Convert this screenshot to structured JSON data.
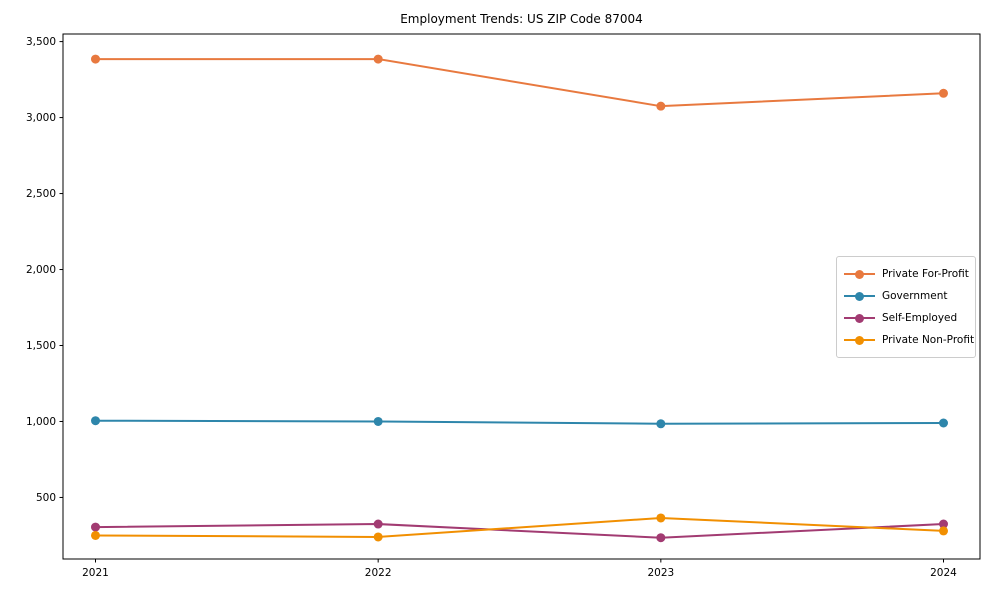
{
  "chart_data": {
    "type": "line",
    "title": "Employment Trends: US ZIP Code 87004",
    "xlabel": "",
    "ylabel": "",
    "x": [
      2021,
      2022,
      2023,
      2024
    ],
    "xtick_labels": [
      "2021",
      "2022",
      "2023",
      "2024"
    ],
    "yticks": [
      500,
      1000,
      1500,
      2000,
      2500,
      3000,
      3500
    ],
    "ylim": [
      95,
      3550
    ],
    "grid": false,
    "legend_position": "center right",
    "marker": "circle",
    "series": [
      {
        "name": "Private For-Profit",
        "color": "#e8793f",
        "values": [
          3385,
          3385,
          3075,
          3160
        ]
      },
      {
        "name": "Government",
        "color": "#2e86ab",
        "values": [
          1005,
          1000,
          985,
          990
        ]
      },
      {
        "name": "Self-Employed",
        "color": "#a23b72",
        "values": [
          305,
          325,
          235,
          325
        ]
      },
      {
        "name": "Private Non-Profit",
        "color": "#f18f01",
        "values": [
          250,
          240,
          365,
          280
        ]
      }
    ]
  }
}
